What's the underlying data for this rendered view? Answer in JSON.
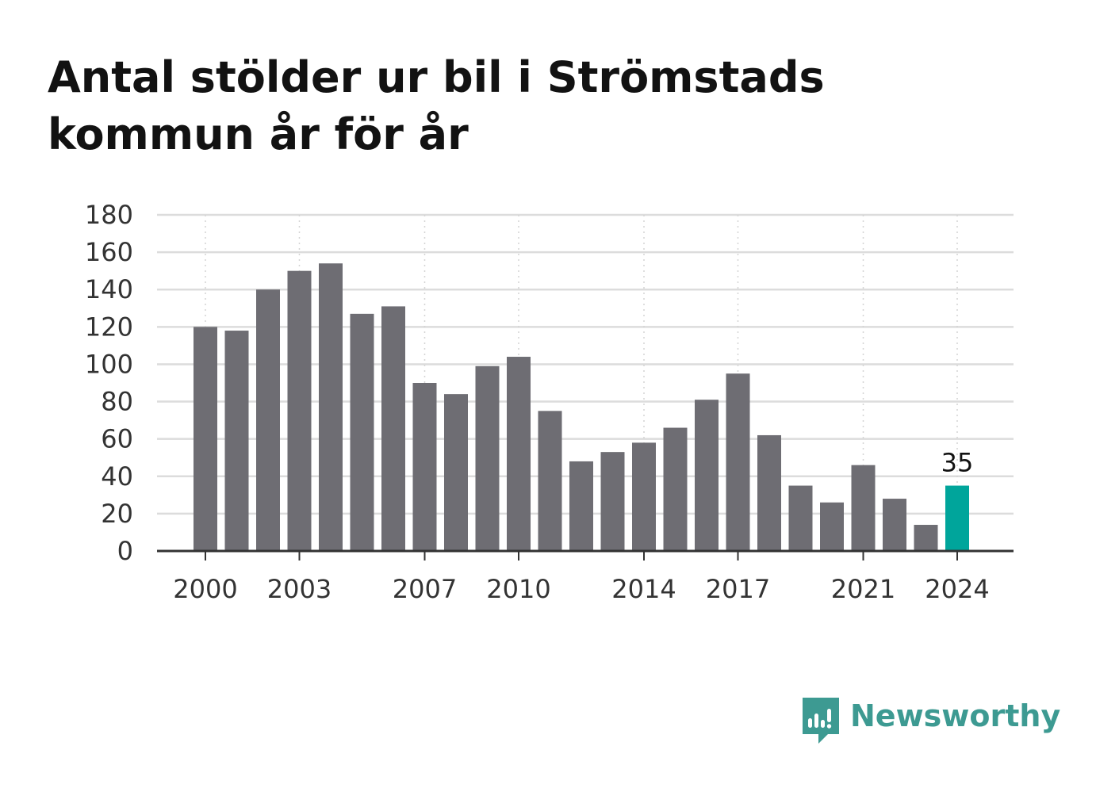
{
  "title": "Antal stölder ur bil i Strömstads kommun år för år",
  "brand": {
    "name": "Newsworthy",
    "color": "#3d9a92",
    "icon": "newsworthy-logo-icon"
  },
  "colors": {
    "bar": "#6e6d73",
    "highlight": "#00a59b",
    "grid": "#dcdcdc",
    "axis": "#333333"
  },
  "chart_data": {
    "type": "bar",
    "title": "Antal stölder ur bil i Strömstads kommun år för år",
    "xlabel": "",
    "ylabel": "",
    "categories": [
      2000,
      2001,
      2002,
      2003,
      2004,
      2005,
      2006,
      2007,
      2008,
      2009,
      2010,
      2011,
      2012,
      2013,
      2014,
      2015,
      2016,
      2017,
      2018,
      2019,
      2020,
      2021,
      2022,
      2023,
      2024
    ],
    "values": [
      120,
      118,
      140,
      150,
      154,
      127,
      131,
      90,
      84,
      99,
      104,
      75,
      48,
      53,
      58,
      66,
      81,
      95,
      62,
      35,
      26,
      46,
      28,
      14,
      35
    ],
    "x_tick_labels": [
      "2000",
      "2003",
      "2007",
      "2010",
      "2014",
      "2017",
      "2021",
      "2024"
    ],
    "y_ticks": [
      0,
      20,
      40,
      60,
      80,
      100,
      120,
      140,
      160,
      180
    ],
    "ylim": [
      0,
      180
    ],
    "grid": true,
    "legend": "none",
    "highlight_category": 2024,
    "data_labels": [
      {
        "category": 2024,
        "text": "35"
      }
    ]
  }
}
